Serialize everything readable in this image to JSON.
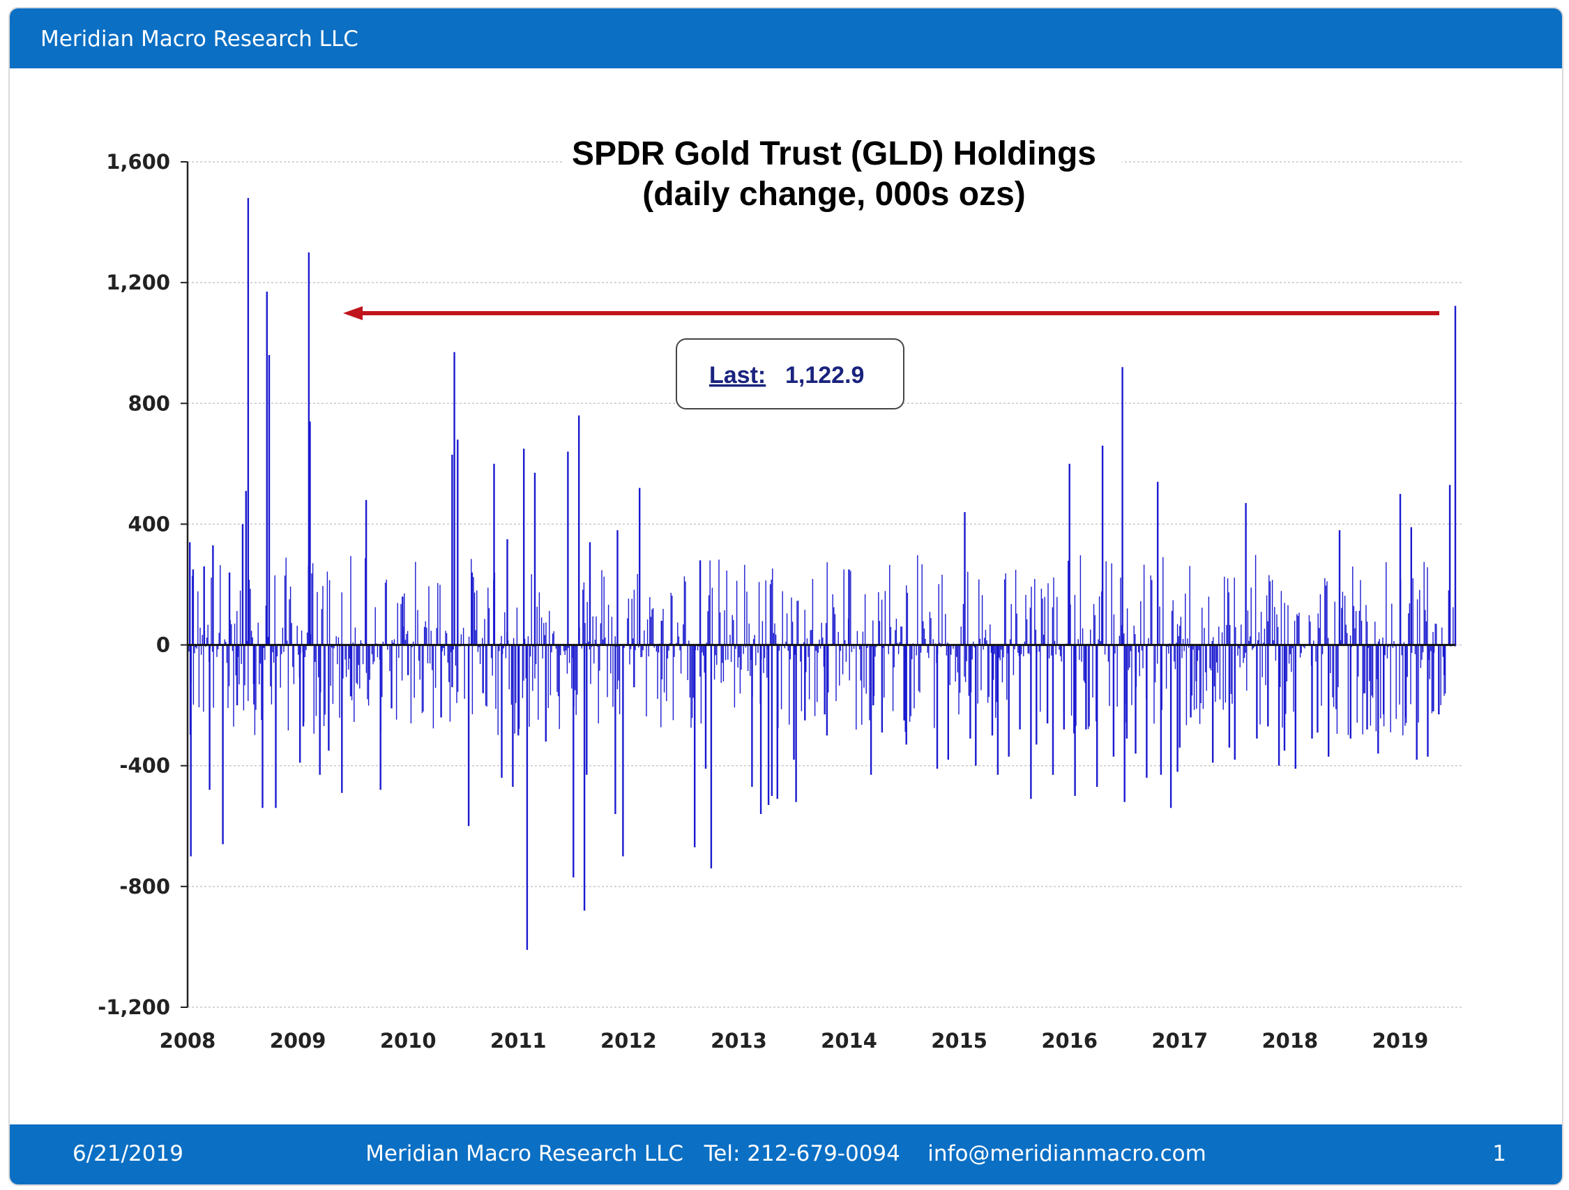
{
  "header": {
    "brand": "Meridian Macro Research LLC"
  },
  "footer": {
    "date": "6/21/2019",
    "contact": "Meridian Macro Research LLC   Tel: 212-679-0094    info@meridianmacro.com",
    "page": "1"
  },
  "colors": {
    "bar": "#0b6fc4",
    "series": "#1a1ad0",
    "arrow": "#c0141c",
    "grid": "#c8c8c8"
  },
  "chart_data": {
    "type": "bar",
    "title": "SPDR Gold Trust (GLD) Holdings",
    "subtitle": "(daily change, 000s ozs)",
    "xlabel": "",
    "ylabel": "",
    "ylim": [
      -1200,
      1600
    ],
    "xlim": [
      2008.0,
      2019.5
    ],
    "grid": true,
    "y_ticks": [
      "1,600",
      "1,200",
      "800",
      "400",
      "0",
      "-400",
      "-800",
      "-1,200"
    ],
    "x_ticks": [
      "2008",
      "2009",
      "2010",
      "2011",
      "2012",
      "2013",
      "2014",
      "2015",
      "2016",
      "2017",
      "2018",
      "2019"
    ],
    "annotation": {
      "label": "Last:",
      "value": "1,122.9"
    },
    "series": [
      {
        "x": [
          2008.02,
          2008.03,
          2008.05,
          2008.15,
          2008.2,
          2008.23,
          2008.32,
          2008.38,
          2008.45,
          2008.5,
          2008.53,
          2008.55,
          2008.6,
          2008.68,
          2008.72,
          2008.74,
          2008.8,
          2009.02,
          2009.05,
          2009.1,
          2009.11,
          2009.2,
          2009.28,
          2009.4,
          2009.48,
          2009.62,
          2009.75,
          2009.85,
          2009.95,
          2010.0,
          2010.3,
          2010.4,
          2010.4,
          2010.42,
          2010.45,
          2010.55,
          2010.58,
          2010.68,
          2010.78,
          2010.85,
          2010.9,
          2010.95,
          2011.0,
          2011.05,
          2011.08,
          2011.15,
          2011.25,
          2011.45,
          2011.5,
          2011.55,
          2011.6,
          2011.62,
          2011.65,
          2011.88,
          2011.9,
          2011.95,
          2012.05,
          2012.1,
          2012.3,
          2012.6,
          2012.65,
          2012.7,
          2012.75,
          2013.12,
          2013.2,
          2013.27,
          2013.3,
          2013.35,
          2013.5,
          2013.52,
          2013.6,
          2013.78,
          2013.8,
          2014.0,
          2014.2,
          2014.22,
          2014.3,
          2014.5,
          2014.52,
          2014.8,
          2014.9,
          2015.05,
          2015.1,
          2015.15,
          2015.3,
          2015.35,
          2015.45,
          2015.55,
          2015.65,
          2015.7,
          2015.8,
          2015.85,
          2015.95,
          2016.0,
          2016.05,
          2016.15,
          2016.25,
          2016.3,
          2016.4,
          2016.48,
          2016.5,
          2016.52,
          2016.6,
          2016.7,
          2016.8,
          2016.83,
          2016.92,
          2016.98,
          2017.0,
          2017.1,
          2017.15,
          2017.3,
          2017.45,
          2017.5,
          2017.6,
          2017.7,
          2017.8,
          2017.9,
          2017.95,
          2018.05,
          2018.2,
          2018.25,
          2018.35,
          2018.45,
          2018.55,
          2018.7,
          2018.8,
          2018.85,
          2019.0,
          2019.05,
          2019.1,
          2019.15,
          2019.25,
          2019.3,
          2019.35,
          2019.4,
          2019.45,
          2019.5
        ],
        "values": [
          340,
          -700,
          250,
          260,
          -480,
          330,
          -660,
          240,
          -200,
          400,
          510,
          1480,
          -130,
          -540,
          1170,
          960,
          -540,
          -390,
          -270,
          1300,
          740,
          -430,
          -350,
          -490,
          -170,
          480,
          -480,
          -210,
          160,
          -100,
          -240,
          630,
          -140,
          970,
          680,
          -600,
          240,
          -160,
          600,
          -440,
          350,
          -470,
          -300,
          650,
          -1010,
          570,
          -320,
          640,
          -770,
          760,
          -880,
          -430,
          340,
          -560,
          380,
          -700,
          -140,
          520,
          80,
          -670,
          280,
          -410,
          -740,
          -470,
          -560,
          -530,
          -500,
          -510,
          -380,
          -520,
          -250,
          -230,
          -300,
          250,
          -430,
          -200,
          -290,
          -250,
          -330,
          -410,
          -380,
          440,
          -310,
          -400,
          -300,
          -430,
          -370,
          -280,
          -510,
          -330,
          -260,
          -430,
          -280,
          600,
          -500,
          -280,
          -470,
          660,
          -370,
          920,
          -520,
          -310,
          -360,
          -440,
          540,
          -430,
          -540,
          -420,
          -340,
          -240,
          -120,
          -390,
          -340,
          -380,
          470,
          -310,
          -270,
          -400,
          -350,
          -410,
          -310,
          -290,
          -370,
          380,
          -310,
          -280,
          -360,
          -230,
          500,
          -240,
          390,
          -380,
          -370,
          -220,
          -230,
          -100,
          530,
          1122.9
        ],
        "name": ""
      }
    ]
  }
}
